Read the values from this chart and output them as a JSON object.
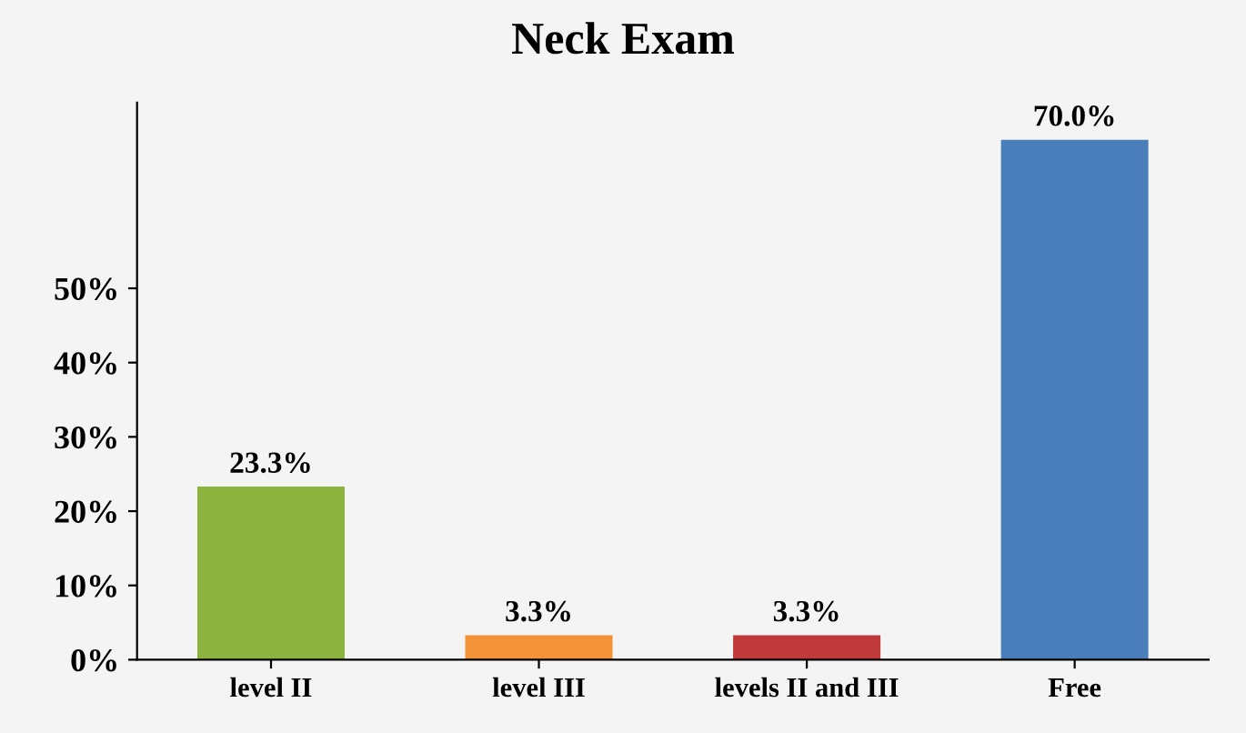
{
  "chart_data": {
    "type": "bar",
    "title": "Neck Exam",
    "categories": [
      "level II",
      "level III",
      "levels II and III",
      "Free"
    ],
    "values": [
      23.3,
      3.3,
      3.3,
      70.0
    ],
    "colors": [
      "#8db33f",
      "#f39237",
      "#c0393b",
      "#4a7ebb"
    ],
    "value_labels": [
      "23.3%",
      "3.3%",
      "3.3%",
      "70.0%"
    ],
    "ylim": [
      0,
      75
    ],
    "yticks": [
      {
        "value": 0,
        "label": "0%"
      },
      {
        "value": 10,
        "label": "10%"
      },
      {
        "value": 20,
        "label": "20%"
      },
      {
        "value": 30,
        "label": "30%"
      },
      {
        "value": 40,
        "label": "40%"
      },
      {
        "value": 50,
        "label": "50%"
      }
    ],
    "grid": false,
    "legend": false
  }
}
